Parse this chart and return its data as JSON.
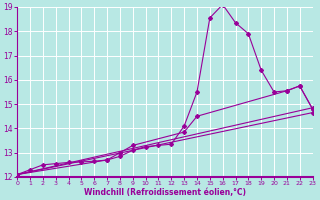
{
  "xlabel": "Windchill (Refroidissement éolien,°C)",
  "bg_color": "#b8e8e4",
  "grid_color": "#d4f0ee",
  "line_color": "#990099",
  "xmin": 0,
  "xmax": 23,
  "ymin": 12,
  "ymax": 19,
  "series": [
    {
      "x": [
        0,
        1,
        2,
        3,
        4,
        5,
        6,
        7,
        8,
        9,
        10,
        11,
        12,
        13,
        14,
        15,
        16,
        17,
        18,
        19,
        20,
        21,
        22,
        23
      ],
      "y": [
        12.1,
        12.3,
        12.5,
        12.55,
        12.6,
        12.62,
        12.65,
        12.7,
        12.85,
        13.1,
        13.25,
        13.3,
        13.35,
        14.1,
        15.5,
        18.55,
        19.1,
        18.35,
        17.9,
        16.4,
        15.5,
        15.55,
        15.75,
        14.8
      ]
    },
    {
      "x": [
        0,
        7,
        8,
        9,
        13,
        14,
        21,
        22,
        23
      ],
      "y": [
        12.1,
        12.7,
        13.0,
        13.3,
        13.85,
        14.5,
        15.55,
        15.75,
        14.8
      ]
    },
    {
      "x": [
        0,
        23
      ],
      "y": [
        12.1,
        14.85
      ]
    },
    {
      "x": [
        0,
        23
      ],
      "y": [
        12.1,
        14.65
      ]
    }
  ]
}
